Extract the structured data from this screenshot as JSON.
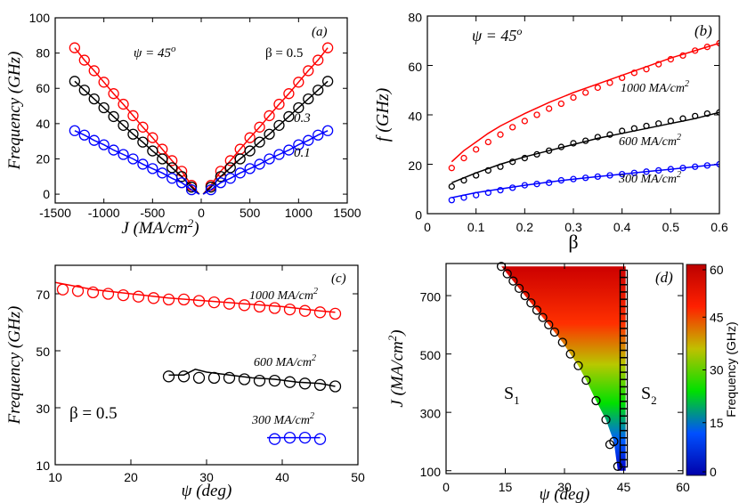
{
  "colors": {
    "red": "#ff0000",
    "black": "#000000",
    "blue": "#0000ff"
  },
  "chart_data": [
    {
      "panel_label": "(a)",
      "type": "scatter",
      "xlabel": "J (MA/cm2)",
      "ylabel": "Frequency (GHz)",
      "xlim": [
        -1500,
        1500
      ],
      "ylim": [
        -5,
        100
      ],
      "xticks": [
        -1500,
        -1000,
        -500,
        0,
        500,
        1000,
        1500
      ],
      "xtick_labels": [
        "-1500",
        "-1000",
        "-500",
        "0",
        "500",
        "1000",
        "1500"
      ],
      "yticks": [
        0,
        20,
        40,
        60,
        80,
        100
      ],
      "ytick_labels": [
        "0",
        "20",
        "40",
        "60",
        "80",
        "100"
      ],
      "annotations": {
        "psi": "ψ = 45o",
        "beta": "β = 0.5",
        "series_labels": [
          {
            "text": "0.3",
            "series": 1
          },
          {
            "text": "0.1",
            "series": 2
          }
        ]
      },
      "series": [
        {
          "color": "red",
          "marker": "circle",
          "fit_line": true,
          "x": [
            -1300,
            -1200,
            -1100,
            -1000,
            -900,
            -800,
            -700,
            -600,
            -500,
            -400,
            -300,
            -200,
            -100,
            100,
            200,
            300,
            400,
            500,
            600,
            700,
            800,
            900,
            1000,
            1100,
            1200,
            1300
          ],
          "y": [
            83,
            76,
            70,
            63.5,
            57,
            51,
            44.5,
            38,
            32,
            25.5,
            19,
            13,
            5,
            5,
            13,
            19,
            25.5,
            32,
            38,
            44.5,
            51,
            57,
            63.5,
            70,
            76,
            83
          ]
        },
        {
          "color": "black",
          "marker": "circle",
          "fit_line": true,
          "x": [
            -1300,
            -1200,
            -1100,
            -1000,
            -900,
            -800,
            -700,
            -600,
            -500,
            -400,
            -300,
            -200,
            -100,
            100,
            200,
            300,
            400,
            500,
            600,
            700,
            800,
            900,
            1000,
            1100,
            1200,
            1300
          ],
          "y": [
            64,
            59,
            54,
            49,
            44,
            39,
            34,
            29.5,
            24.5,
            20,
            15,
            10,
            4,
            4,
            10,
            15,
            20,
            24.5,
            29.5,
            34,
            39,
            44,
            49,
            54,
            59,
            64
          ]
        },
        {
          "color": "blue",
          "marker": "circle",
          "fit_line": true,
          "x": [
            -1300,
            -1200,
            -1100,
            -1000,
            -900,
            -800,
            -700,
            -600,
            -500,
            -400,
            -300,
            -200,
            -100,
            100,
            200,
            300,
            400,
            500,
            600,
            700,
            800,
            900,
            1000,
            1100,
            1200,
            1300
          ],
          "y": [
            36,
            33.5,
            30.5,
            28,
            25,
            22.5,
            20,
            17,
            14.5,
            12,
            9,
            6.5,
            2.5,
            2.5,
            6.5,
            9,
            12,
            14.5,
            17,
            20,
            22.5,
            25,
            28,
            30.5,
            33.5,
            36
          ]
        }
      ]
    },
    {
      "panel_label": "(b)",
      "type": "scatter",
      "xlabel": "β",
      "ylabel": "f (GHz)",
      "xlim": [
        0,
        0.6
      ],
      "ylim": [
        0,
        80
      ],
      "xticks": [
        0,
        0.1,
        0.2,
        0.3,
        0.4,
        0.5,
        0.6
      ],
      "xtick_labels": [
        "0",
        "0.1",
        "0.2",
        "0.3",
        "0.4",
        "0.5",
        "0.6"
      ],
      "yticks": [
        0,
        20,
        40,
        60,
        80
      ],
      "ytick_labels": [
        "0",
        "20",
        "40",
        "60",
        "80"
      ],
      "annotations": {
        "psi": "ψ = 45o"
      },
      "series": [
        {
          "name": "1000 MA/cm2",
          "color": "red",
          "marker": "circle",
          "x": [
            0.05,
            0.075,
            0.1,
            0.125,
            0.15,
            0.175,
            0.2,
            0.225,
            0.25,
            0.275,
            0.3,
            0.325,
            0.35,
            0.375,
            0.4,
            0.425,
            0.45,
            0.475,
            0.5,
            0.525,
            0.55,
            0.575,
            0.6
          ],
          "y": [
            18.5,
            22.5,
            26,
            29,
            32,
            35,
            37.5,
            40,
            42.5,
            44.5,
            47,
            49,
            51,
            53,
            55,
            57,
            58.5,
            60.5,
            62.5,
            64,
            66,
            67.5,
            69
          ],
          "fit_x": [
            0.05,
            0.075,
            0.1,
            0.125,
            0.15,
            0.2,
            0.25,
            0.3,
            0.35,
            0.4,
            0.45,
            0.5,
            0.55,
            0.6
          ],
          "fit_y": [
            21,
            25.5,
            29,
            32.5,
            35.5,
            40.5,
            45,
            49,
            52.5,
            56,
            59.5,
            63,
            66,
            69
          ]
        },
        {
          "name": "600 MA/cm2",
          "color": "black",
          "marker": "circle",
          "x": [
            0.05,
            0.075,
            0.1,
            0.125,
            0.15,
            0.175,
            0.2,
            0.225,
            0.25,
            0.275,
            0.3,
            0.325,
            0.35,
            0.375,
            0.4,
            0.425,
            0.45,
            0.475,
            0.5,
            0.525,
            0.55,
            0.575,
            0.6
          ],
          "y": [
            11,
            13.5,
            15.5,
            17.5,
            19,
            21,
            22.5,
            24,
            25.5,
            27,
            28.5,
            29.5,
            31,
            32,
            33.5,
            34.5,
            35.5,
            36.5,
            37.5,
            38.5,
            39.5,
            40.5,
            41
          ],
          "fit_x": [
            0.05,
            0.1,
            0.15,
            0.2,
            0.25,
            0.3,
            0.35,
            0.4,
            0.45,
            0.5,
            0.55,
            0.6
          ],
          "fit_y": [
            12.5,
            16.5,
            20,
            23,
            25.5,
            28,
            30.5,
            32.5,
            34.5,
            36.5,
            38.5,
            41
          ]
        },
        {
          "name": "300 MA/cm2",
          "color": "blue",
          "marker": "circle",
          "x": [
            0.05,
            0.075,
            0.1,
            0.125,
            0.15,
            0.175,
            0.2,
            0.225,
            0.25,
            0.275,
            0.3,
            0.325,
            0.35,
            0.375,
            0.4,
            0.425,
            0.45,
            0.475,
            0.5,
            0.525,
            0.55,
            0.575,
            0.6
          ],
          "y": [
            5.5,
            6.5,
            7.5,
            8.5,
            9.5,
            10.5,
            11.5,
            12,
            12.5,
            13.5,
            14,
            14.5,
            15,
            15.5,
            16,
            16.5,
            17,
            17.5,
            18,
            18.5,
            19,
            19.5,
            20
          ],
          "fit_x": [
            0.05,
            0.1,
            0.15,
            0.2,
            0.25,
            0.3,
            0.35,
            0.4,
            0.45,
            0.5,
            0.55,
            0.6
          ],
          "fit_y": [
            6.5,
            8.5,
            10,
            11.5,
            12.8,
            14,
            15,
            16,
            17,
            18,
            19,
            20
          ]
        }
      ]
    },
    {
      "panel_label": "(c)",
      "type": "scatter",
      "xlabel": "ψ (deg)",
      "ylabel": "Frequency (GHz)",
      "xlim": [
        10,
        50
      ],
      "ylim": [
        10,
        80
      ],
      "xticks": [
        10,
        20,
        30,
        40,
        50
      ],
      "xtick_labels": [
        "10",
        "20",
        "30",
        "40",
        "50"
      ],
      "yticks": [
        10,
        30,
        50,
        70
      ],
      "ytick_labels": [
        "10",
        "30",
        "50",
        "70"
      ],
      "annotations": {
        "beta": "β = 0.5"
      },
      "series": [
        {
          "name": "1000 MA/cm2",
          "color": "red",
          "marker": "circle",
          "x": [
            11,
            13,
            15,
            17,
            19,
            21,
            23,
            25,
            27,
            29,
            31,
            33,
            35,
            37,
            39,
            41,
            43,
            45,
            47
          ],
          "y": [
            71.5,
            71,
            70.5,
            70,
            69.5,
            69,
            68.5,
            68,
            68,
            67.5,
            67,
            66.5,
            66,
            65.5,
            65,
            64.5,
            64,
            63.5,
            63
          ],
          "fit_x": [
            10,
            15,
            20,
            25,
            30,
            35,
            40,
            45,
            47
          ],
          "fit_y": [
            74,
            71.5,
            70,
            68.5,
            67.5,
            66.5,
            65.5,
            64,
            63.5
          ]
        },
        {
          "name": "600 MA/cm2",
          "color": "black",
          "marker": "circle",
          "x": [
            25,
            27,
            29,
            31,
            33,
            35,
            37,
            39,
            41,
            43,
            45,
            47
          ],
          "y": [
            41,
            41,
            40.5,
            40.5,
            40.5,
            40,
            39.5,
            39.5,
            39,
            38.5,
            38,
            37.5
          ],
          "fit_x": [
            25,
            27,
            28.5,
            30,
            33,
            36,
            39,
            42,
            45,
            47
          ],
          "fit_y": [
            41.5,
            41.5,
            43.5,
            42.5,
            41.5,
            40.5,
            40,
            39,
            38.5,
            37.5
          ]
        },
        {
          "name": "300 MA/cm2",
          "color": "blue",
          "marker": "circle",
          "x": [
            39,
            41,
            43,
            45
          ],
          "y": [
            19,
            19.5,
            19.5,
            19
          ],
          "fit_x": [
            38,
            45
          ],
          "fit_y": [
            19.5,
            19.5
          ]
        }
      ]
    },
    {
      "panel_label": "(d)",
      "type": "heatmap",
      "xlabel": "ψ (deg)",
      "ylabel": "J (MA/cm2)",
      "colorbar_label": "Frequency (GHz)",
      "xlim": [
        0,
        60
      ],
      "ylim": [
        90,
        810
      ],
      "xticks": [
        0,
        15,
        30,
        45,
        60
      ],
      "xtick_labels": [
        "0",
        "15",
        "30",
        "45",
        "60"
      ],
      "yticks": [
        100,
        300,
        500,
        700
      ],
      "ytick_labels": [
        "100",
        "300",
        "500",
        "700"
      ],
      "colorbar_ticks": [
        0,
        15,
        30,
        45,
        60
      ],
      "colorbar_tick_labels": [
        "0",
        "15",
        "30",
        "45",
        "60"
      ],
      "region_labels": [
        "S1",
        "S2"
      ],
      "boundary_circles": {
        "x": [
          14,
          15.5,
          17,
          18.5,
          20,
          21.5,
          23,
          24.5,
          26,
          27.5,
          29.5,
          31.5,
          33.5,
          35.5,
          38,
          40.5,
          42.5
        ],
        "y": [
          800,
          775,
          750,
          725,
          700,
          675,
          650,
          625,
          600,
          575,
          540,
          500,
          460,
          410,
          340,
          275,
          200
        ]
      },
      "boundary_squares": {
        "x": [
          45,
          45,
          45,
          45,
          45,
          45,
          45,
          45,
          45,
          45,
          45,
          45,
          45,
          45,
          45,
          45,
          45,
          45,
          45,
          45,
          45,
          45,
          45,
          45,
          45,
          45,
          45
        ],
        "y": [
          775,
          750,
          725,
          700,
          675,
          650,
          625,
          600,
          575,
          550,
          525,
          500,
          475,
          450,
          425,
          400,
          375,
          350,
          325,
          300,
          275,
          250,
          225,
          200,
          175,
          150,
          125
        ]
      },
      "extra_points": {
        "x": [
          41.5,
          43.5
        ],
        "y": [
          190,
          115
        ]
      },
      "stable_region": {
        "left_x": [
          14,
          15.5,
          17,
          18.5,
          20,
          21.5,
          23,
          24.5,
          26,
          27.5,
          29.5,
          31.5,
          33.5,
          35.5,
          38,
          40.5,
          42.5,
          43.5
        ],
        "left_y": [
          800,
          775,
          750,
          725,
          700,
          675,
          650,
          625,
          600,
          575,
          540,
          500,
          460,
          410,
          340,
          275,
          200,
          100
        ],
        "right_x": 45.5
      }
    }
  ]
}
